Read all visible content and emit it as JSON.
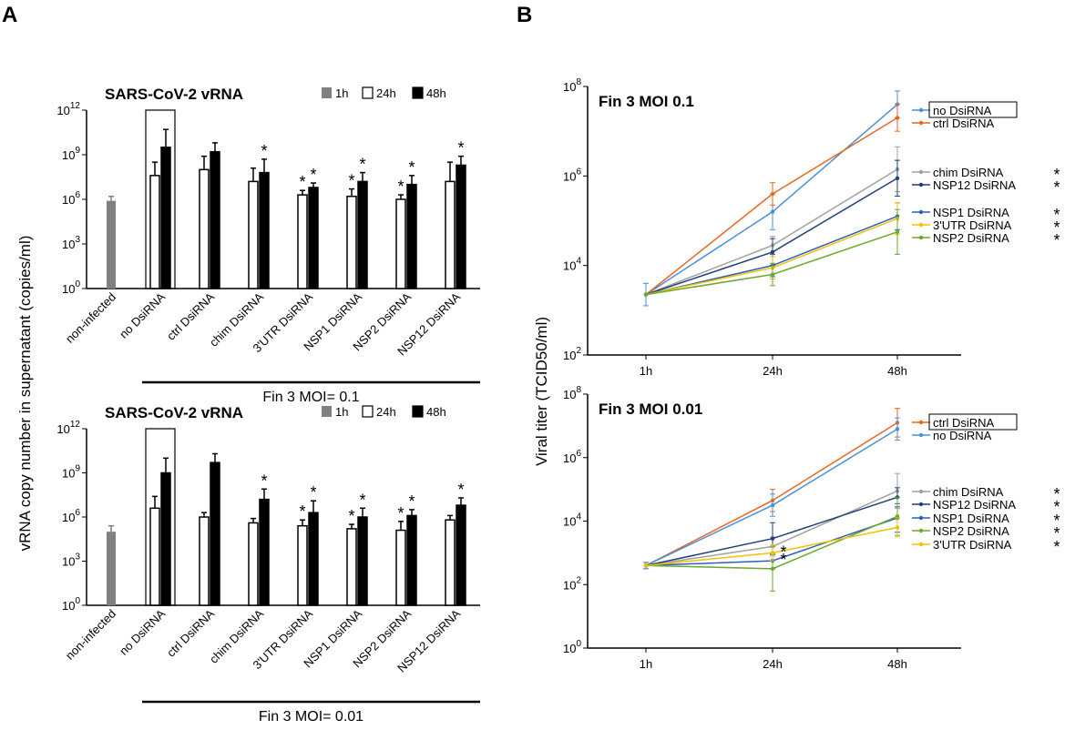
{
  "panel_labels": [
    "A",
    "B"
  ],
  "colors": {
    "bar_1h": "#808080",
    "bar_24h": "#ffffff",
    "bar_48h": "#000000",
    "no DsiRNA": "#4a90d9",
    "ctrl DsiRNA": "#e8671e",
    "chim DsiRNA": "#a0a0a0",
    "NSP12 DsiRNA": "#1f3f7a",
    "NSP1 DsiRNA": "#2c5fbf",
    "3'UTR DsiRNA": "#f5c000",
    "NSP2 DsiRNA": "#6aaa2a"
  },
  "chart_data": [
    {
      "panel": "A",
      "type": "bar",
      "scale": "log10",
      "title": "SARS-CoV-2 vRNA",
      "ylabel": "vRNA copy number in supernatant (copies/ml)",
      "yticks": [
        {
          "exp": 0,
          "label": "10",
          "sup": "0"
        },
        {
          "exp": 3,
          "label": "10",
          "sup": "3"
        },
        {
          "exp": 6,
          "label": "10",
          "sup": "6"
        },
        {
          "exp": 9,
          "label": "10",
          "sup": "9"
        },
        {
          "exp": 12,
          "label": "10",
          "sup": "12"
        }
      ],
      "ylim_exp": [
        0,
        12
      ],
      "legend": [
        "1h",
        "24h",
        "48h"
      ],
      "categories": [
        "non-infected",
        "no DsiRNA",
        "ctrl DsiRNA",
        "chim DsiRNA",
        "3'UTR DsiRNA",
        "NSP1 DsiRNA",
        "NSP2 DsiRNA",
        "NSP12 DsiRNA"
      ],
      "xlabel": "Fin 3 MOI= 0.1",
      "boxed_category": "no DsiRNA",
      "series": [
        {
          "name": "1h",
          "values": [
            5.9,
            null,
            null,
            null,
            null,
            null,
            null,
            null
          ],
          "err": [
            0.3,
            0,
            0,
            0,
            0,
            0,
            0,
            0
          ]
        },
        {
          "name": "24h",
          "values": [
            null,
            7.6,
            8.0,
            7.2,
            6.3,
            6.2,
            6.0,
            7.2
          ],
          "err": [
            0,
            0.9,
            0.9,
            0.9,
            0.3,
            0.5,
            0.3,
            1.3
          ]
        },
        {
          "name": "48h",
          "values": [
            null,
            9.5,
            9.2,
            7.8,
            6.8,
            7.2,
            7.0,
            8.3
          ],
          "err": [
            0,
            1.2,
            0.6,
            0.9,
            0.3,
            0.6,
            0.6,
            0.6
          ]
        }
      ],
      "significance": [
        {
          "category": "chim DsiRNA",
          "series": "48h",
          "label": "*"
        },
        {
          "category": "3'UTR DsiRNA",
          "series": "24h",
          "label": "*"
        },
        {
          "category": "3'UTR DsiRNA",
          "series": "48h",
          "label": "*"
        },
        {
          "category": "NSP1 DsiRNA",
          "series": "24h",
          "label": "*"
        },
        {
          "category": "NSP1 DsiRNA",
          "series": "48h",
          "label": "*"
        },
        {
          "category": "NSP2 DsiRNA",
          "series": "24h",
          "label": "*"
        },
        {
          "category": "NSP2 DsiRNA",
          "series": "48h",
          "label": "*"
        },
        {
          "category": "NSP12 DsiRNA",
          "series": "48h",
          "label": "*"
        }
      ]
    },
    {
      "panel": "A",
      "type": "bar",
      "scale": "log10",
      "title": "SARS-CoV-2 vRNA",
      "yticks": [
        {
          "exp": 0,
          "label": "10",
          "sup": "0"
        },
        {
          "exp": 3,
          "label": "10",
          "sup": "3"
        },
        {
          "exp": 6,
          "label": "10",
          "sup": "6"
        },
        {
          "exp": 9,
          "label": "10",
          "sup": "9"
        },
        {
          "exp": 12,
          "label": "10",
          "sup": "12"
        }
      ],
      "ylim_exp": [
        0,
        12
      ],
      "legend": [
        "1h",
        "24h",
        "48h"
      ],
      "categories": [
        "non-infected",
        "no DsiRNA",
        "ctrl DsiRNA",
        "chim DsiRNA",
        "3'UTR DsiRNA",
        "NSP1 DsiRNA",
        "NSP2 DsiRNA",
        "NSP12 DsiRNA"
      ],
      "xlabel": "Fin 3 MOI= 0.01",
      "boxed_category": "no DsiRNA",
      "series": [
        {
          "name": "1h",
          "values": [
            5.0,
            null,
            null,
            null,
            null,
            null,
            null,
            null
          ],
          "err": [
            0.4,
            0,
            0,
            0,
            0,
            0,
            0,
            0
          ]
        },
        {
          "name": "24h",
          "values": [
            null,
            6.6,
            6.0,
            5.6,
            5.4,
            5.2,
            5.1,
            5.8
          ],
          "err": [
            0,
            0.8,
            0.3,
            0.3,
            0.4,
            0.3,
            0.6,
            0.3
          ]
        },
        {
          "name": "48h",
          "values": [
            null,
            9.0,
            9.7,
            7.2,
            6.3,
            6.0,
            6.1,
            6.8
          ],
          "err": [
            0,
            1.0,
            0.6,
            0.7,
            0.8,
            0.6,
            0.4,
            0.5
          ]
        }
      ],
      "significance": [
        {
          "category": "chim DsiRNA",
          "series": "48h",
          "label": "*"
        },
        {
          "category": "3'UTR DsiRNA",
          "series": "24h",
          "label": "*"
        },
        {
          "category": "3'UTR DsiRNA",
          "series": "48h",
          "label": "*"
        },
        {
          "category": "NSP1 DsiRNA",
          "series": "24h",
          "label": "*"
        },
        {
          "category": "NSP1 DsiRNA",
          "series": "48h",
          "label": "*"
        },
        {
          "category": "NSP2 DsiRNA",
          "series": "24h",
          "label": "*"
        },
        {
          "category": "NSP2 DsiRNA",
          "series": "48h",
          "label": "*"
        },
        {
          "category": "NSP12 DsiRNA",
          "series": "48h",
          "label": "*"
        }
      ]
    },
    {
      "panel": "B",
      "type": "line",
      "scale": "log10",
      "title": "Fin 3 MOI 0.1",
      "ylabel": "Viral titer (TCID50/ml)",
      "x": [
        "1h",
        "24h",
        "48h"
      ],
      "yticks": [
        {
          "exp": 2,
          "label": "10",
          "sup": "2"
        },
        {
          "exp": 4,
          "label": "10",
          "sup": "4"
        },
        {
          "exp": 6,
          "label": "10",
          "sup": "6"
        },
        {
          "exp": 8,
          "label": "10",
          "sup": "8"
        }
      ],
      "ylim_exp": [
        2,
        8
      ],
      "boxed_legend": "no DsiRNA",
      "series": [
        {
          "name": "no DsiRNA",
          "values_exp": [
            3.35,
            5.2,
            7.6
          ],
          "err": [
            0.25,
            0.4,
            0.3
          ],
          "sig": ""
        },
        {
          "name": "ctrl DsiRNA",
          "values_exp": [
            3.35,
            5.6,
            7.3
          ],
          "err": [
            0,
            0.25,
            0.3
          ],
          "sig": ""
        },
        {
          "name": "chim DsiRNA",
          "values_exp": [
            3.35,
            4.45,
            6.15
          ],
          "err": [
            0,
            0.2,
            0.5
          ],
          "sig": "*"
        },
        {
          "name": "NSP12 DsiRNA",
          "values_exp": [
            3.35,
            4.3,
            5.95
          ],
          "err": [
            0,
            0.3,
            0.4
          ],
          "sig": "*"
        },
        {
          "name": "NSP1 DsiRNA",
          "values_exp": [
            3.35,
            4.0,
            5.1
          ],
          "err": [
            0,
            0.25,
            0.3
          ],
          "sig": "*"
        },
        {
          "name": "3'UTR DsiRNA",
          "values_exp": [
            3.35,
            3.95,
            5.05
          ],
          "err": [
            0,
            0.25,
            0.35
          ],
          "sig": "*"
        },
        {
          "name": "NSP2 DsiRNA",
          "values_exp": [
            3.35,
            3.8,
            4.75
          ],
          "err": [
            0,
            0.25,
            0.5
          ],
          "sig": "*"
        }
      ]
    },
    {
      "panel": "B",
      "type": "line",
      "scale": "log10",
      "title": "Fin 3 MOI 0.01",
      "x": [
        "1h",
        "24h",
        "48h"
      ],
      "yticks": [
        {
          "exp": 0,
          "label": "10",
          "sup": "0"
        },
        {
          "exp": 2,
          "label": "10",
          "sup": "2"
        },
        {
          "exp": 4,
          "label": "10",
          "sup": "4"
        },
        {
          "exp": 6,
          "label": "10",
          "sup": "6"
        },
        {
          "exp": 8,
          "label": "10",
          "sup": "8"
        }
      ],
      "ylim_exp": [
        0,
        8
      ],
      "boxed_legend": "ctrl DsiRNA",
      "series": [
        {
          "name": "ctrl DsiRNA",
          "values_exp": [
            2.6,
            4.65,
            7.1
          ],
          "err": [
            0.1,
            0.35,
            0.45
          ],
          "sig": ""
        },
        {
          "name": "no DsiRNA",
          "values_exp": [
            2.6,
            4.5,
            6.9
          ],
          "err": [
            0.1,
            0.35,
            0.35
          ],
          "sig": ""
        },
        {
          "name": "chim DsiRNA",
          "values_exp": [
            2.6,
            3.2,
            4.95
          ],
          "err": [
            0,
            0.3,
            0.55
          ],
          "sig": "*"
        },
        {
          "name": "NSP12 DsiRNA",
          "values_exp": [
            2.6,
            3.45,
            4.75
          ],
          "err": [
            0,
            0.5,
            0.3
          ],
          "sig": "*"
        },
        {
          "name": "NSP1 DsiRNA",
          "values_exp": [
            2.6,
            2.75,
            4.1
          ],
          "err": [
            0,
            0.25,
            0.45
          ],
          "sig": "*"
        },
        {
          "name": "NSP2 DsiRNA",
          "values_exp": [
            2.6,
            2.5,
            4.15
          ],
          "err": [
            0,
            0.7,
            0.6
          ],
          "sig": "*"
        },
        {
          "name": "3'UTR DsiRNA",
          "values_exp": [
            2.6,
            3.0,
            3.8
          ],
          "err": [
            0,
            0.25,
            0.3
          ],
          "sig": "*"
        }
      ],
      "extra_sig": [
        {
          "x": "24h",
          "series": "3'UTR DsiRNA",
          "label": "*"
        },
        {
          "x": "24h",
          "series": "NSP1 DsiRNA",
          "label": "*"
        }
      ]
    }
  ]
}
